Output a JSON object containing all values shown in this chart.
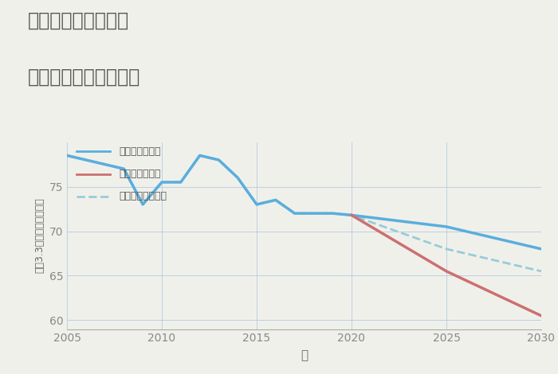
{
  "title_line1": "千葉県東金市大沼の",
  "title_line2": "中古戸建ての価格推移",
  "xlabel": "年",
  "ylabel": "坪（3.3㎡）単価（万円）",
  "background_color": "#f0f0eb",
  "plot_bg_color": "#f0f0eb",
  "xlim": [
    2005,
    2030
  ],
  "ylim": [
    59,
    80
  ],
  "yticks": [
    60,
    65,
    70,
    75
  ],
  "xticks": [
    2005,
    2010,
    2015,
    2020,
    2025,
    2030
  ],
  "good_scenario": {
    "x": [
      2005,
      2007,
      2008,
      2009,
      2010,
      2011,
      2012,
      2013,
      2014,
      2015,
      2016,
      2017,
      2018,
      2019,
      2020,
      2025,
      2030
    ],
    "y": [
      78.5,
      77.5,
      77.0,
      73.0,
      75.5,
      75.5,
      78.5,
      78.0,
      76.0,
      73.0,
      73.5,
      72.0,
      72.0,
      72.0,
      71.8,
      70.5,
      68.0
    ],
    "color": "#5aaedc",
    "linewidth": 2.5,
    "label": "グッドシナリオ",
    "linestyle": "-"
  },
  "bad_scenario": {
    "x": [
      2020,
      2025,
      2030
    ],
    "y": [
      71.8,
      65.5,
      60.5
    ],
    "color": "#cc7070",
    "linewidth": 2.5,
    "label": "バッドシナリオ",
    "linestyle": "-"
  },
  "normal_scenario": {
    "x": [
      2005,
      2007,
      2008,
      2009,
      2010,
      2011,
      2012,
      2013,
      2014,
      2015,
      2016,
      2017,
      2018,
      2019,
      2020,
      2025,
      2030
    ],
    "y": [
      78.5,
      77.5,
      77.0,
      73.0,
      75.5,
      75.5,
      78.5,
      78.0,
      76.0,
      73.0,
      73.5,
      72.0,
      72.0,
      72.0,
      71.8,
      68.0,
      65.5
    ],
    "color": "#98ccd8",
    "linewidth": 2.0,
    "label": "ノーマルシナリオ",
    "linestyle": "--"
  },
  "legend_labels": [
    "グッドシナリオ",
    "バッドシナリオ",
    "ノーマルシナリオ"
  ],
  "legend_colors": [
    "#5aaedc",
    "#cc7070",
    "#98ccd8"
  ],
  "legend_linestyles": [
    "-",
    "-",
    "--"
  ]
}
